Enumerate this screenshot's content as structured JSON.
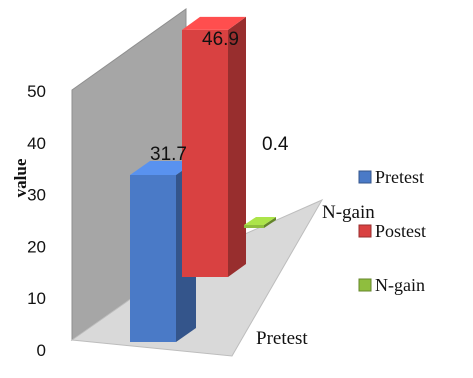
{
  "chart_data": {
    "type": "bar",
    "title": "",
    "xlabel": "",
    "ylabel": "value",
    "ylim": [
      0,
      50
    ],
    "yticks": [
      0,
      10,
      20,
      30,
      40,
      50
    ],
    "categories": [
      "Pretest",
      "N-gain"
    ],
    "series": [
      {
        "name": "Pretest",
        "category": "Pretest",
        "value": 31.7,
        "color": "#4a7ac7"
      },
      {
        "name": "Postest",
        "category": "Pretest",
        "value": 46.9,
        "color": "#d94141"
      },
      {
        "name": "N-gain",
        "category": "Pretest",
        "value": 0.4,
        "color": "#8fbe3e"
      }
    ],
    "data_labels": [
      "31.7",
      "46.9",
      "0.4"
    ],
    "legend": {
      "placement": "right",
      "entries": [
        "Pretest",
        "Postest",
        "N-gain"
      ]
    },
    "grid": false,
    "style": "3d-column"
  }
}
